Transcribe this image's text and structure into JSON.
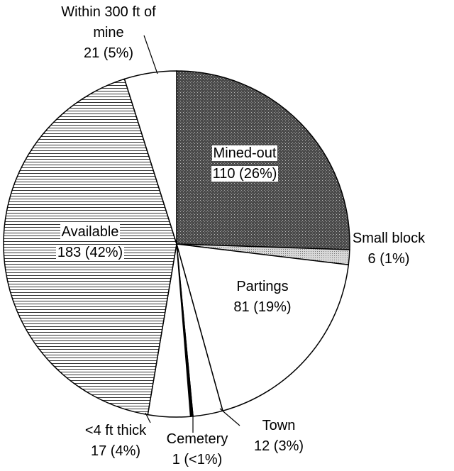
{
  "chart_data": {
    "type": "pie",
    "categories": [
      "Mined-out",
      "Small block",
      "Partings",
      "Town",
      "Cemetery",
      "<4 ft thick",
      "Available",
      "Within 300 ft of mine"
    ],
    "values": [
      110,
      6,
      81,
      12,
      1,
      17,
      183,
      21
    ],
    "value_labels": [
      "110 (26%)",
      "6 (1%)",
      "81 (19%)",
      "12 (3%)",
      "1 (<1%)",
      "17 (4%)",
      "183 (42%)",
      "21 (5%)"
    ],
    "fills": [
      "stipple-dark",
      "stipple-light",
      "white",
      "white",
      "black",
      "white",
      "horizontal-lines",
      "white"
    ]
  }
}
